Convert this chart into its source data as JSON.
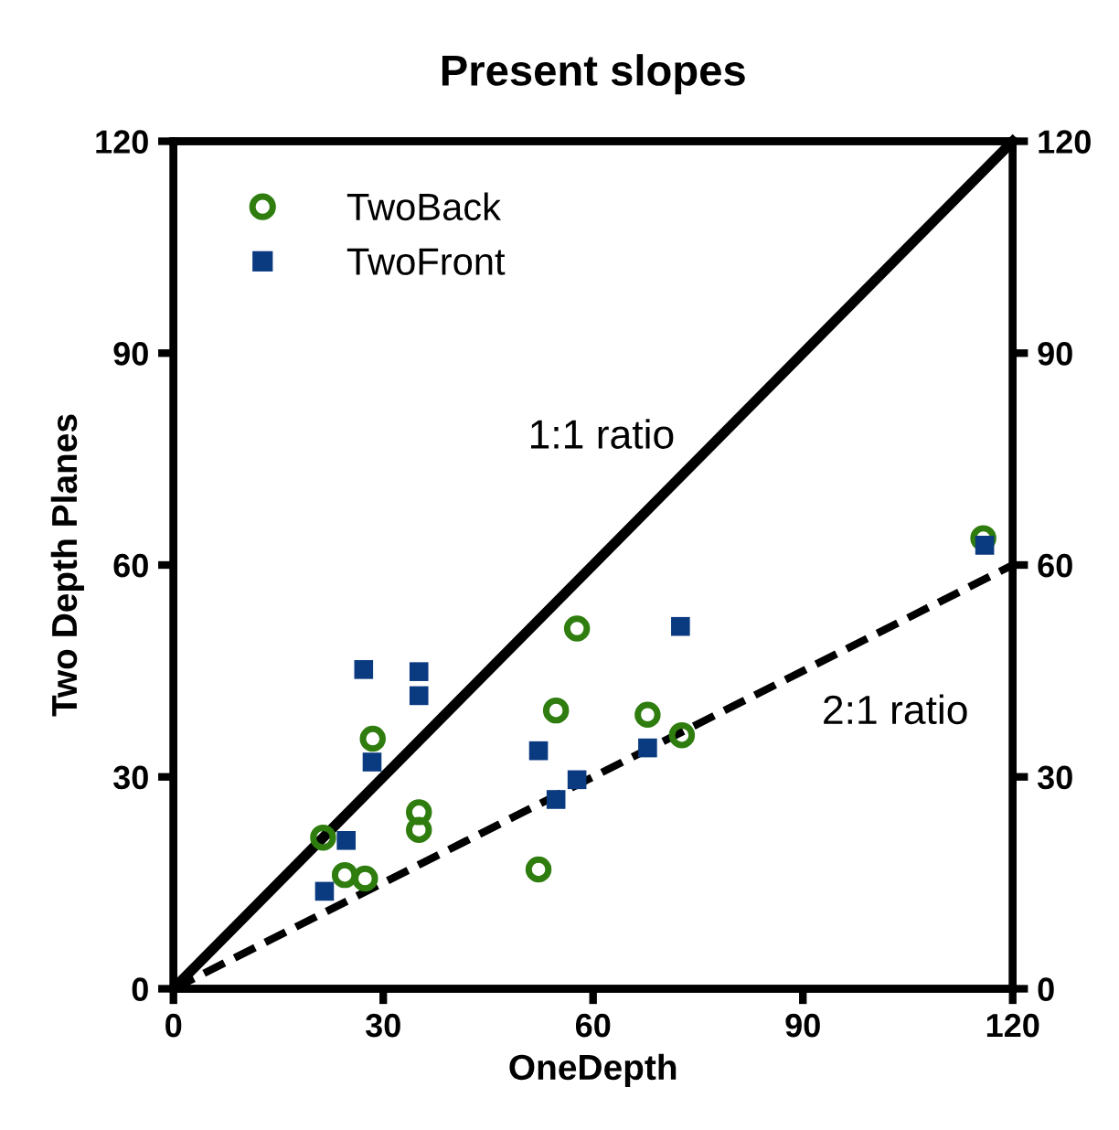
{
  "chart_data": {
    "type": "scatter",
    "title": "Present slopes",
    "xlabel": "OneDepth",
    "ylabel": "Two Depth Planes",
    "xlim": [
      0,
      120
    ],
    "xticks": [
      0,
      30,
      60,
      90,
      120
    ],
    "ylim": [
      0,
      120
    ],
    "yticks": [
      0,
      30,
      60,
      90,
      120
    ],
    "y2lim": [
      0,
      120
    ],
    "y2ticks": [
      0,
      30,
      60,
      90,
      120
    ],
    "grid": false,
    "legend": "top left",
    "series": [
      {
        "name": "TwoBack",
        "color": "#2e7d0e",
        "marker": "circle",
        "x": [
          21.4,
          24.5,
          27.4,
          28.5,
          35.1,
          35.1,
          52.2,
          54.7,
          57.7,
          67.8,
          72.7,
          115.8
        ],
        "values": [
          21.4,
          16.1,
          15.6,
          35.4,
          25.0,
          22.5,
          16.9,
          39.4,
          51.0,
          38.8,
          35.9,
          63.8
        ]
      },
      {
        "name": "TwoFront",
        "color": "#0a3a80",
        "marker": "square",
        "x": [
          21.6,
          24.7,
          27.2,
          28.4,
          35.1,
          35.1,
          52.2,
          54.7,
          57.7,
          67.8,
          72.5,
          116
        ],
        "values": [
          13.8,
          21.0,
          45.2,
          32.1,
          44.9,
          41.5,
          33.7,
          26.8,
          29.6,
          34.1,
          51.3,
          62.8
        ]
      },
      {
        "type": "line",
        "color": "#000000",
        "line_style": "solid",
        "x": [
          0,
          120
        ],
        "values": [
          0,
          120
        ]
      },
      {
        "type": "line",
        "color": "#000000",
        "line_style": "dashed",
        "x": [
          0,
          120
        ],
        "values": [
          0,
          60
        ]
      }
    ],
    "annotations": [
      "1:1 ratio",
      "2:1 ratio"
    ]
  }
}
